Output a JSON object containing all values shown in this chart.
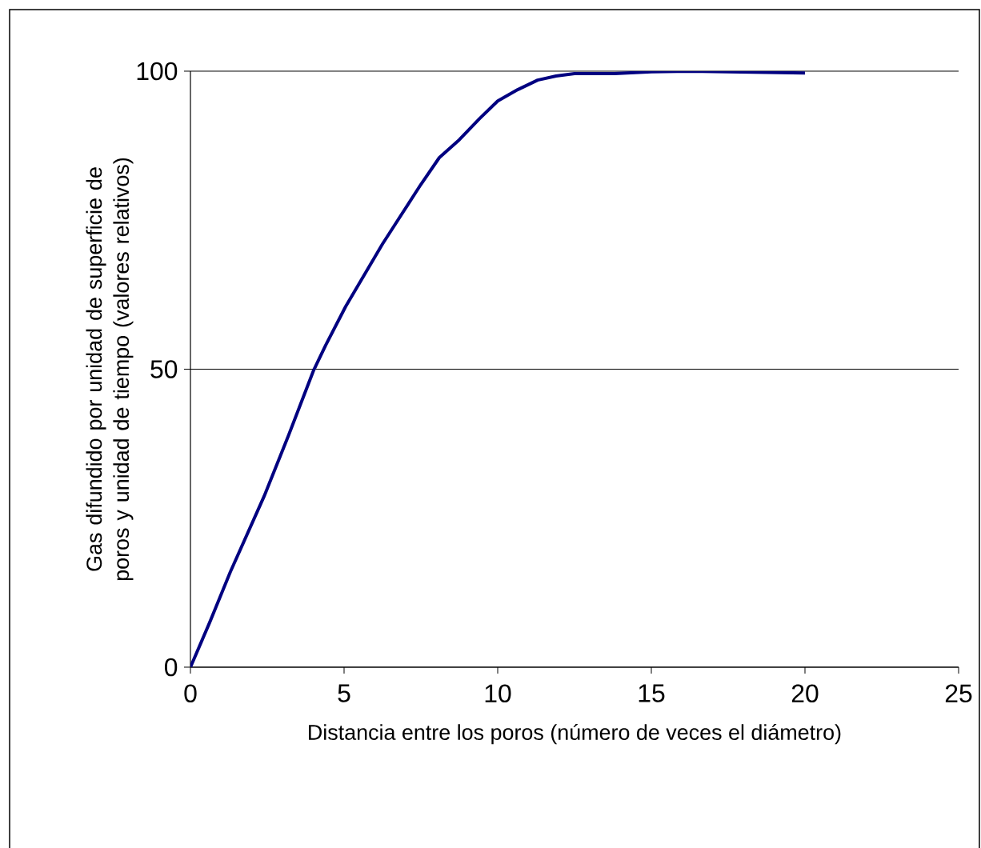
{
  "chart_data": {
    "type": "line",
    "xlabel": "Distancia entre los poros (número de veces el diámetro)",
    "ylabel": "Gas difundido por unidad de superficie de poros y unidad de tiempo (valores relativos)",
    "x": [
      0,
      0.625,
      1.3,
      2.4,
      3.2,
      4.0,
      4.4,
      5.05,
      6.25,
      7.5,
      8.1,
      8.75,
      9.4,
      10.0,
      10.65,
      11.3,
      11.9,
      12.5,
      13.8,
      15,
      16.25,
      20
    ],
    "series": [
      {
        "color": "#000080",
        "values": [
          0,
          7.5,
          16,
          28.7,
          39,
          49.7,
          54,
          60.5,
          71,
          81,
          85.5,
          88.5,
          92,
          95,
          96.9,
          98.5,
          99.2,
          99.6,
          99.6,
          99.9,
          100,
          99.7
        ]
      }
    ],
    "xlim": [
      0,
      25
    ],
    "ylim": [
      0,
      100
    ],
    "xticks": [
      0,
      5,
      10,
      15,
      20,
      25
    ],
    "yticks": [
      0,
      50,
      100
    ],
    "grid": "y",
    "marker": "none",
    "line_style": "solid"
  }
}
